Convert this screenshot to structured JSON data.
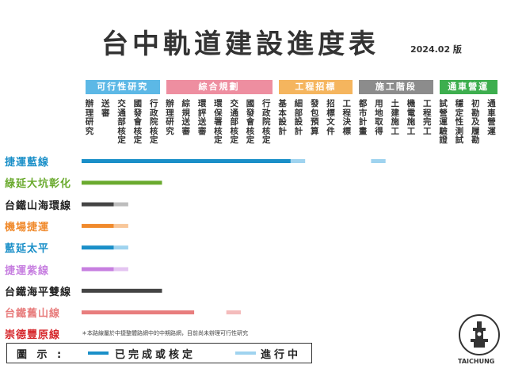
{
  "title": "台中軌道建設進度表",
  "date": "2024.02 版",
  "phases": [
    {
      "label": "可行性研究",
      "color": "#5cb8e6"
    },
    {
      "label": "綜合規劃",
      "color": "#ee8ea0"
    },
    {
      "label": "工程招標",
      "color": "#f5b55e"
    },
    {
      "label": "施工階段",
      "color": "#8c8c8c"
    },
    {
      "label": "通車營運",
      "color": "#3dae4e"
    }
  ],
  "steps": [
    "辦理研究",
    "送審",
    "交通部核定",
    "國發會核定",
    "行政院核定",
    "辦理研究",
    "綜規送審",
    "環評送審",
    "環保署核定",
    "交通部核定",
    "國發會核定",
    "行政院核定",
    "基本設計",
    "細部設計",
    "發包預算",
    "招標文件",
    "工程決標",
    "都市計畫",
    "用地取得",
    "土建施工",
    "機電施工",
    "工程完工",
    "試營運驗證",
    "穩定性測試",
    "初勘及履勘",
    "通車營運"
  ],
  "lines": [
    {
      "name": "捷運藍線",
      "color": "#1a8fc8"
    },
    {
      "name": "綠延大坑彰化",
      "color": "#6aaa2e"
    },
    {
      "name": "台鐵山海環線",
      "color": "#222222"
    },
    {
      "name": "機場捷運",
      "color": "#f08a2c"
    },
    {
      "name": "藍延太平",
      "color": "#1a8fc8"
    },
    {
      "name": "捷運紫線",
      "color": "#c77fe0"
    },
    {
      "name": "台鐵海平雙線",
      "color": "#222222"
    },
    {
      "name": "台鐵舊山線",
      "color": "#e87d7d"
    },
    {
      "name": "崇德豐原線",
      "color": "#d6262b"
    }
  ],
  "note": "＊本路線屬於中捷整體路網中的中期路網，目前尚未辦理可行性研究",
  "legend": {
    "label": "圖 示 :",
    "done": "已完成或核定",
    "progress": "進行中",
    "done_color": "#1a8fc8",
    "progress_color": "#9fd3ef"
  },
  "logo_text": "TAICHUNG",
  "chart_data": {
    "type": "bar",
    "title": "台中軌道建設進度表",
    "categories": [
      "捷運藍線",
      "綠延大坑彰化",
      "台鐵山海環線",
      "機場捷運",
      "藍延太平",
      "捷運紫線",
      "台鐵海平雙線",
      "台鐵舊山線",
      "崇德豐原線"
    ],
    "series": [
      {
        "name": "已完成或核定",
        "segments": [
          [
            [
              0,
              13
            ]
          ],
          [
            [
              0,
              5
            ]
          ],
          [
            [
              0,
              2
            ]
          ],
          [
            [
              0,
              2
            ]
          ],
          [
            [
              0,
              2
            ]
          ],
          [
            [
              0,
              2
            ]
          ],
          [
            [
              0,
              5
            ]
          ],
          [
            [
              0,
              7
            ]
          ],
          []
        ],
        "colors": [
          "#1a8fc8",
          "#6aaa2e",
          "#444444",
          "#f08a2c",
          "#1a8fc8",
          "#c77fe0",
          "#444444",
          "#e87d7d",
          "#d6262b"
        ]
      },
      {
        "name": "進行中",
        "segments": [
          [
            [
              13,
              14
            ],
            [
              18,
              19
            ]
          ],
          [],
          [
            [
              2,
              3
            ]
          ],
          [
            [
              2,
              3
            ]
          ],
          [
            [
              2,
              3
            ]
          ],
          [
            [
              2,
              3
            ]
          ],
          [],
          [
            [
              9,
              10
            ]
          ],
          []
        ],
        "colors": [
          "#9fd3ef",
          "#b6dc8e",
          "#bdbdbd",
          "#f8c79a",
          "#9fd3ef",
          "#e4c4f1",
          "#bdbdbd",
          "#f4bcbc",
          "#f0a0a0"
        ]
      }
    ],
    "x_units": "step index (0–26)"
  }
}
